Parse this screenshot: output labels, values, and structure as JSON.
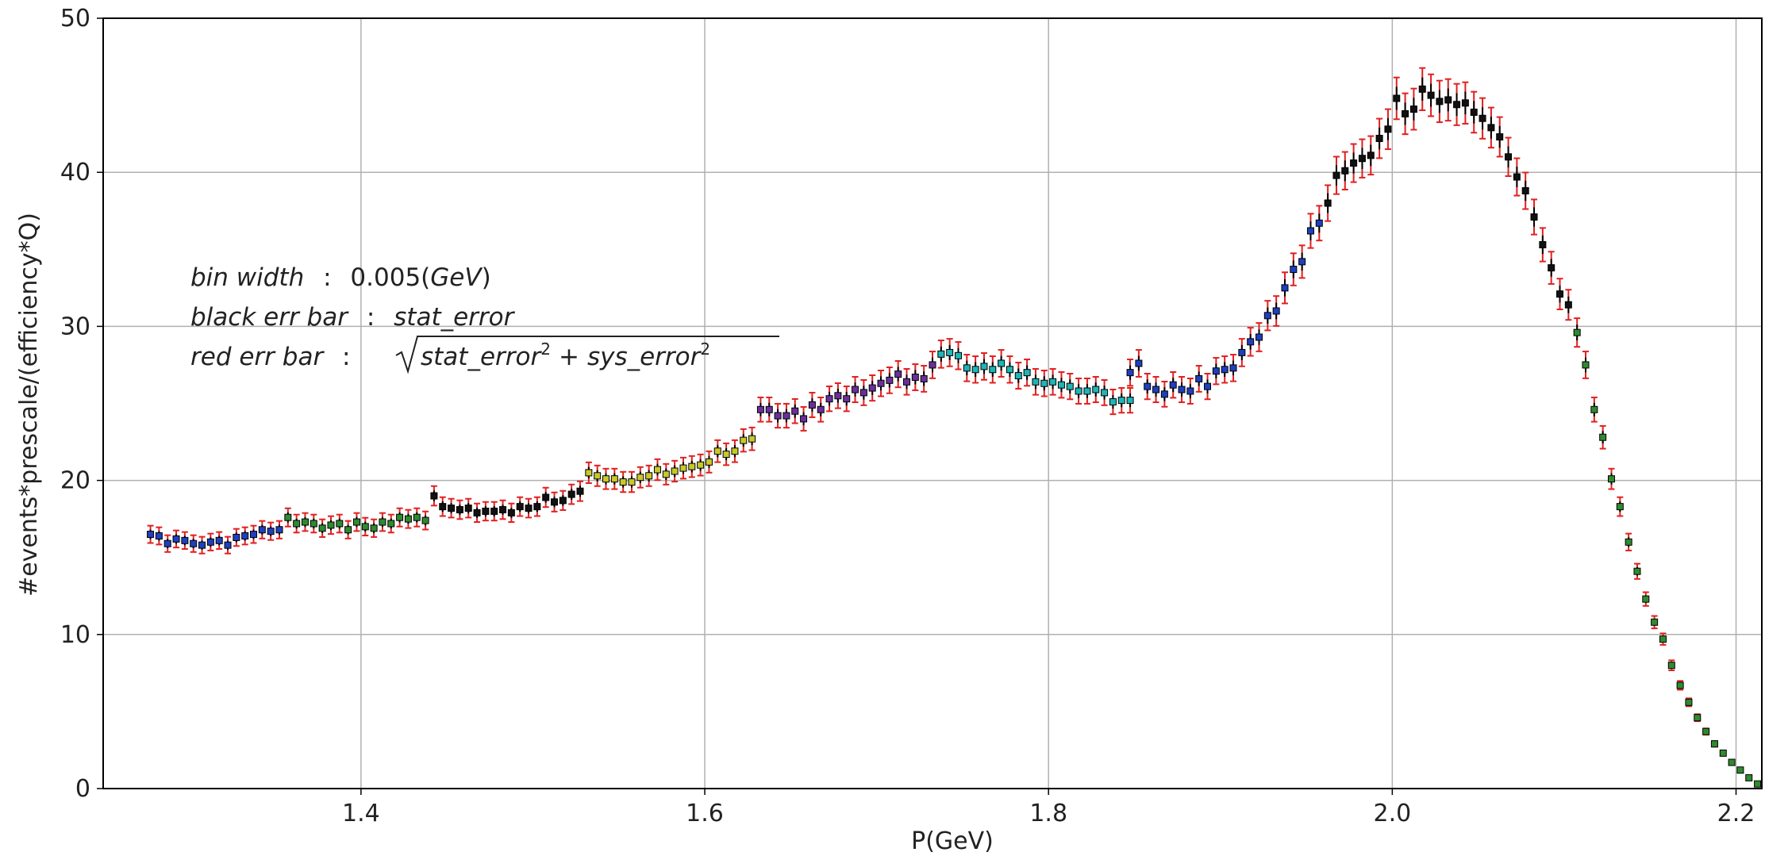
{
  "chart_data": {
    "type": "scatter",
    "title": "",
    "xlabel": "P(GeV)",
    "ylabel": "#events*prescale/(efficiency*Q)",
    "xlim": [
      1.25,
      2.215
    ],
    "ylim": [
      0,
      50
    ],
    "xticks": [
      1.4,
      1.6,
      1.8,
      2.0,
      2.2
    ],
    "xtick_labels": [
      "1.4",
      "1.6",
      "1.8",
      "2.0",
      "2.2"
    ],
    "yticks": [
      0,
      10,
      20,
      30,
      40,
      50
    ],
    "ytick_labels": [
      "0",
      "10",
      "20",
      "30",
      "40",
      "50"
    ],
    "grid": true,
    "error_bar_colors": {
      "stat": "#000000",
      "total": "#e02020"
    },
    "annotations": {
      "line1_label": "bin width",
      "line1_sep": ":",
      "line1_value": "0.005(",
      "line1_unit": "GeV",
      "line1_close": ")",
      "line2_label": "black err bar",
      "line2_sep": ":",
      "line2_value": "stat_error",
      "line3_label": "red err bar",
      "line3_sep": ":",
      "line3_term1": "stat_error",
      "line3_plus": "+",
      "line3_term2": "sys_error",
      "line3_exp": "2"
    },
    "segments": [
      {
        "color": "#1f3fbf",
        "x_start": 1.2775,
        "y": [
          16.5,
          16.4,
          15.9,
          16.2,
          16.1,
          15.9,
          15.8,
          16.0,
          16.1,
          15.8,
          16.3,
          16.4,
          16.5,
          16.8,
          16.7,
          16.8
        ]
      },
      {
        "color": "#2e8b2e",
        "x_start": 1.3575,
        "y": [
          17.6,
          17.2,
          17.3,
          17.2,
          16.9,
          17.1,
          17.2,
          16.8,
          17.3,
          17.0,
          16.9,
          17.3,
          17.2,
          17.6,
          17.5,
          17.6,
          17.4
        ]
      },
      {
        "color": "#111111",
        "x_start": 1.4425,
        "y": [
          19.0,
          18.3,
          18.2,
          18.1,
          18.2,
          17.9,
          18.0,
          18.0,
          18.1,
          17.9,
          18.3,
          18.2,
          18.3,
          18.9,
          18.6,
          18.7,
          19.1,
          19.3
        ]
      },
      {
        "color": "#c8c82a",
        "x_start": 1.5325,
        "y": [
          20.5,
          20.3,
          20.1,
          20.1,
          19.9,
          19.9,
          20.2,
          20.3,
          20.7,
          20.4,
          20.6,
          20.8,
          20.9,
          21.0,
          21.2,
          21.9,
          21.7,
          21.9,
          22.6,
          22.7
        ]
      },
      {
        "color": "#6b2f9b",
        "x_start": 1.6325,
        "y": [
          24.6,
          24.6,
          24.2,
          24.2,
          24.5,
          24.0,
          24.9,
          24.6,
          25.3,
          25.5,
          25.3,
          25.9,
          25.7,
          26.0,
          26.3,
          26.5,
          26.9,
          26.4,
          26.7,
          26.6,
          27.5
        ]
      },
      {
        "color": "#1fb5b5",
        "x_start": 1.7375,
        "y": [
          28.2,
          28.3,
          28.1,
          27.3,
          27.2,
          27.4,
          27.2,
          27.6,
          27.2,
          26.8,
          27.0,
          26.4,
          26.3,
          26.4,
          26.2,
          26.1,
          25.8,
          25.8,
          25.9,
          25.7,
          25.1,
          25.2,
          25.2
        ]
      },
      {
        "color": "#1f3fbf",
        "x_start": 1.8475,
        "y": [
          27.0,
          27.6,
          26.1,
          25.9,
          25.6,
          26.2,
          25.9,
          25.8,
          26.6,
          26.1,
          27.1,
          27.2,
          27.3,
          28.3,
          29.0,
          29.3,
          30.7,
          31.0,
          32.5,
          33.7,
          34.2,
          36.2,
          36.7
        ]
      },
      {
        "color": "#111111",
        "x_start": 1.9625,
        "y": [
          38.0,
          39.8,
          40.1,
          40.6,
          40.9,
          41.1,
          42.2,
          42.8,
          44.8,
          43.8,
          44.1,
          45.4,
          45.0,
          44.6,
          44.7,
          44.4,
          44.5,
          43.9,
          43.5,
          42.9,
          42.3,
          41.0,
          39.7,
          38.8,
          37.1,
          35.3,
          33.8,
          32.1,
          31.4
        ]
      },
      {
        "color": "#2e8b2e",
        "x_start": 2.1075,
        "y": [
          29.6,
          27.5,
          24.6,
          22.8,
          20.1,
          18.3,
          16.0,
          14.1,
          12.3,
          10.8,
          9.7,
          8.0,
          6.7,
          5.6,
          4.6,
          3.7,
          2.9,
          2.3,
          1.7,
          1.2,
          0.7,
          0.3,
          0.15,
          0.1,
          0.05
        ]
      }
    ]
  }
}
